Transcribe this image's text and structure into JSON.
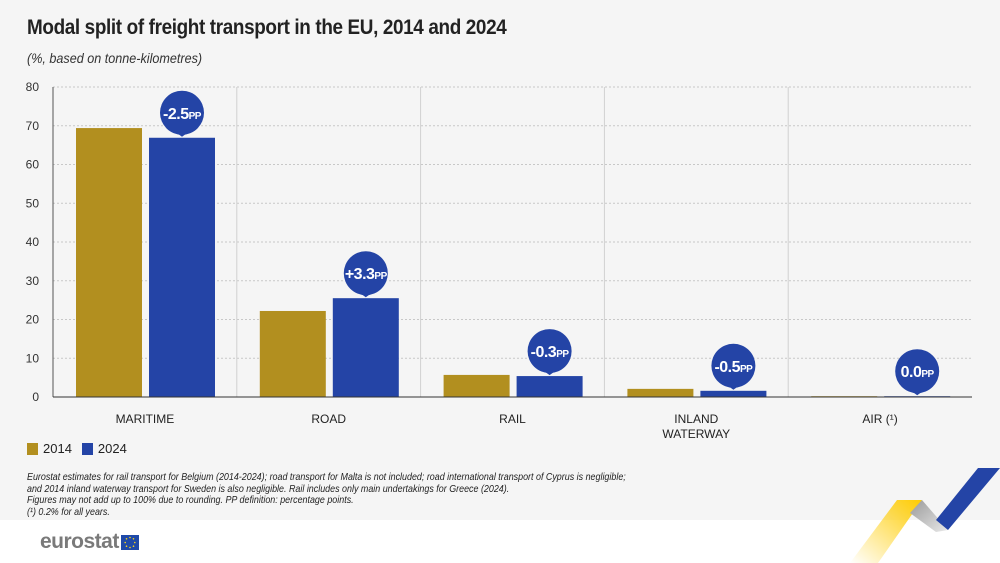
{
  "title": "Modal split of freight transport in the EU, 2014 and 2024",
  "subtitle": "(%, based on tonne-kilometres)",
  "colors": {
    "2014": "#b28f1f",
    "2024": "#2444a6",
    "background": "#f5f5f5"
  },
  "chart_data": {
    "type": "bar",
    "categories": [
      "MARITIME",
      "ROAD",
      "RAIL",
      "INLAND WATERWAY",
      "AIR (¹)"
    ],
    "series": [
      {
        "name": "2014",
        "values": [
          69.4,
          22.2,
          5.7,
          2.1,
          0.2
        ]
      },
      {
        "name": "2024",
        "values": [
          66.9,
          25.5,
          5.4,
          1.6,
          0.2
        ]
      }
    ],
    "annotations": [
      "-2.5",
      "+3.3",
      "-0.3",
      "-0.5",
      "0.0"
    ],
    "annotation_unit": "PP",
    "ylim": [
      0,
      80
    ],
    "yticks": [
      0,
      10,
      20,
      30,
      40,
      50,
      60,
      70,
      80
    ],
    "grid": true,
    "legend": "bottom-left",
    "xlabel": "",
    "ylabel": ""
  },
  "notes": [
    "Eurostat estimates for rail transport for Belgium (2014-2024); road transport for Malta is not included; road international transport of Cyprus is negligible;",
    "and 2014 inland waterway transport for Sweden is also negligible. Rail includes only main undertakings for Greece (2024).",
    "Figures may not add up to 100% due to rounding. PP definition: percentage points.",
    "(¹) 0.2% for all years."
  ],
  "logo": {
    "text": "eurostat"
  }
}
